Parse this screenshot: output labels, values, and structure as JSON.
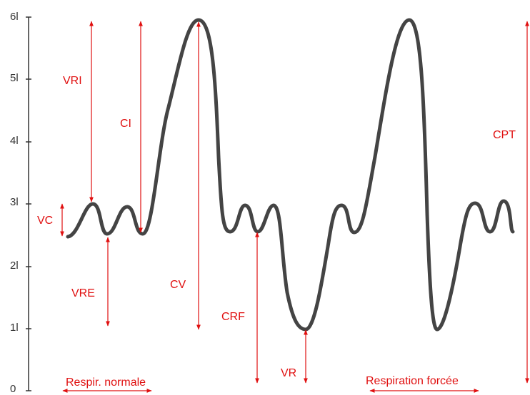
{
  "y_axis": {
    "labels": [
      "0",
      "1l",
      "2l",
      "3l",
      "4l",
      "5l",
      "6l"
    ]
  },
  "volumes": [
    "VRI",
    "CI",
    "VC",
    "VRE",
    "CV",
    "CRF",
    "VR",
    "CPT"
  ],
  "phases": [
    "Respir. normale",
    "Respiration forcée"
  ]
}
